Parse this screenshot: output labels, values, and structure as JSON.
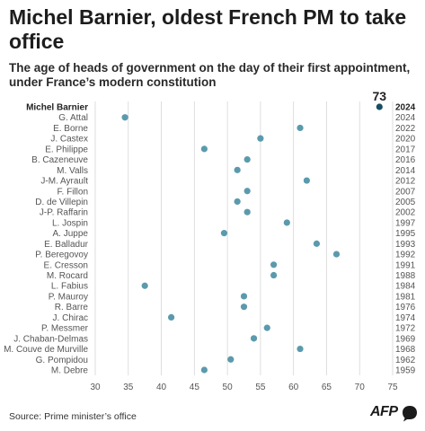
{
  "title": "Michel Barnier, oldest French PM to take office",
  "subtitle": "The age of heads of government on the day of their first appointment, under France’s modern constitution",
  "source": "Source: Prime minister’s office",
  "logo_text": "AFP",
  "colors": {
    "dot": "#5b9aad",
    "highlight_dot": "#174e62",
    "grid": "#d6d6d6",
    "text": "#555555"
  },
  "chart_data": {
    "type": "scatter",
    "title": "Michel Barnier, oldest French PM to take office",
    "xlabel": "",
    "ylabel": "",
    "xlim": [
      30,
      75
    ],
    "xticks": [
      30,
      35,
      40,
      45,
      50,
      55,
      60,
      65,
      70,
      75
    ],
    "grid": true,
    "highlight_label": "73",
    "points": [
      {
        "name": "Michel Barnier",
        "year": "2024",
        "age": 73,
        "highlight": true
      },
      {
        "name": "G. Attal",
        "year": "2024",
        "age": 34.5
      },
      {
        "name": "E. Borne",
        "year": "2022",
        "age": 61
      },
      {
        "name": "J. Castex",
        "year": "2020",
        "age": 55
      },
      {
        "name": "E. Philippe",
        "year": "2017",
        "age": 46.5
      },
      {
        "name": "B. Cazeneuve",
        "year": "2016",
        "age": 53
      },
      {
        "name": "M. Valls",
        "year": "2014",
        "age": 51.5
      },
      {
        "name": "J-M. Ayrault",
        "year": "2012",
        "age": 62
      },
      {
        "name": "F. Fillon",
        "year": "2007",
        "age": 53
      },
      {
        "name": "D. de Villepin",
        "year": "2005",
        "age": 51.5
      },
      {
        "name": "J-P. Raffarin",
        "year": "2002",
        "age": 53
      },
      {
        "name": "L. Jospin",
        "year": "1997",
        "age": 59
      },
      {
        "name": "A. Juppe",
        "year": "1995",
        "age": 49.5
      },
      {
        "name": "E. Balladur",
        "year": "1993",
        "age": 63.5
      },
      {
        "name": "P. Beregovoy",
        "year": "1992",
        "age": 66.5
      },
      {
        "name": "E. Cresson",
        "year": "1991",
        "age": 57
      },
      {
        "name": "M. Rocard",
        "year": "1988",
        "age": 57
      },
      {
        "name": "L. Fabius",
        "year": "1984",
        "age": 37.5
      },
      {
        "name": "P. Mauroy",
        "year": "1981",
        "age": 52.5
      },
      {
        "name": "R. Barre",
        "year": "1976",
        "age": 52.5
      },
      {
        "name": "J. Chirac",
        "year": "1974",
        "age": 41.5
      },
      {
        "name": "P. Messmer",
        "year": "1972",
        "age": 56
      },
      {
        "name": "J. Chaban-Delmas",
        "year": "1969",
        "age": 54
      },
      {
        "name": "M. Couve de Murville",
        "year": "1968",
        "age": 61
      },
      {
        "name": "G. Pompidou",
        "year": "1962",
        "age": 50.5
      },
      {
        "name": "M. Debre",
        "year": "1959",
        "age": 46.5
      }
    ]
  }
}
